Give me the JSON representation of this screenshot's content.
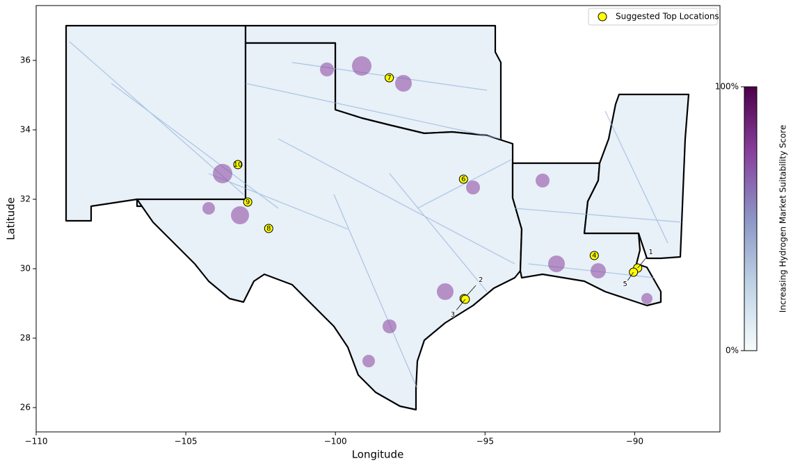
{
  "chart_data": {
    "type": "map",
    "xlabel": "Longitude",
    "ylabel": "Latitude",
    "xlim": [
      -110,
      -87.15
    ],
    "ylim": [
      25.3,
      37.58
    ],
    "xticks": [
      {
        "value": -110,
        "label": "−110"
      },
      {
        "value": -105,
        "label": "−105"
      },
      {
        "value": -100,
        "label": "−100"
      },
      {
        "value": -95,
        "label": "−95"
      },
      {
        "value": -90,
        "label": "−90"
      }
    ],
    "yticks": [
      26,
      28,
      30,
      32,
      34,
      36
    ],
    "legend": {
      "label": "Suggested Top Locations",
      "position": "upper right"
    },
    "marker_color": "#ffff00",
    "locations": [
      {
        "label": "1",
        "lon": -89.9,
        "lat": 30.02
      },
      {
        "label": "2",
        "lon": -95.7,
        "lat": 29.14
      },
      {
        "label": "3",
        "lon": -95.66,
        "lat": 29.12
      },
      {
        "label": "4",
        "lon": -91.35,
        "lat": 30.38
      },
      {
        "label": "5",
        "lon": -90.04,
        "lat": 29.9
      },
      {
        "label": "6",
        "lon": -95.72,
        "lat": 32.58
      },
      {
        "label": "7",
        "lon": -98.2,
        "lat": 35.5
      },
      {
        "label": "8",
        "lon": -102.23,
        "lat": 31.16
      },
      {
        "label": "9",
        "lon": -102.93,
        "lat": 31.92
      },
      {
        "label": "10",
        "lon": -103.26,
        "lat": 33.0
      }
    ],
    "colorbar": {
      "label": "Increasing Hydrogen Market Suitability Score",
      "ticks": [
        {
          "value": 0,
          "label": "0%"
        },
        {
          "value": 100,
          "label": "100%"
        }
      ],
      "colors": [
        "#f7fcfd",
        "#bfd3e6",
        "#8c96c6",
        "#88419d",
        "#4d004b"
      ]
    }
  }
}
